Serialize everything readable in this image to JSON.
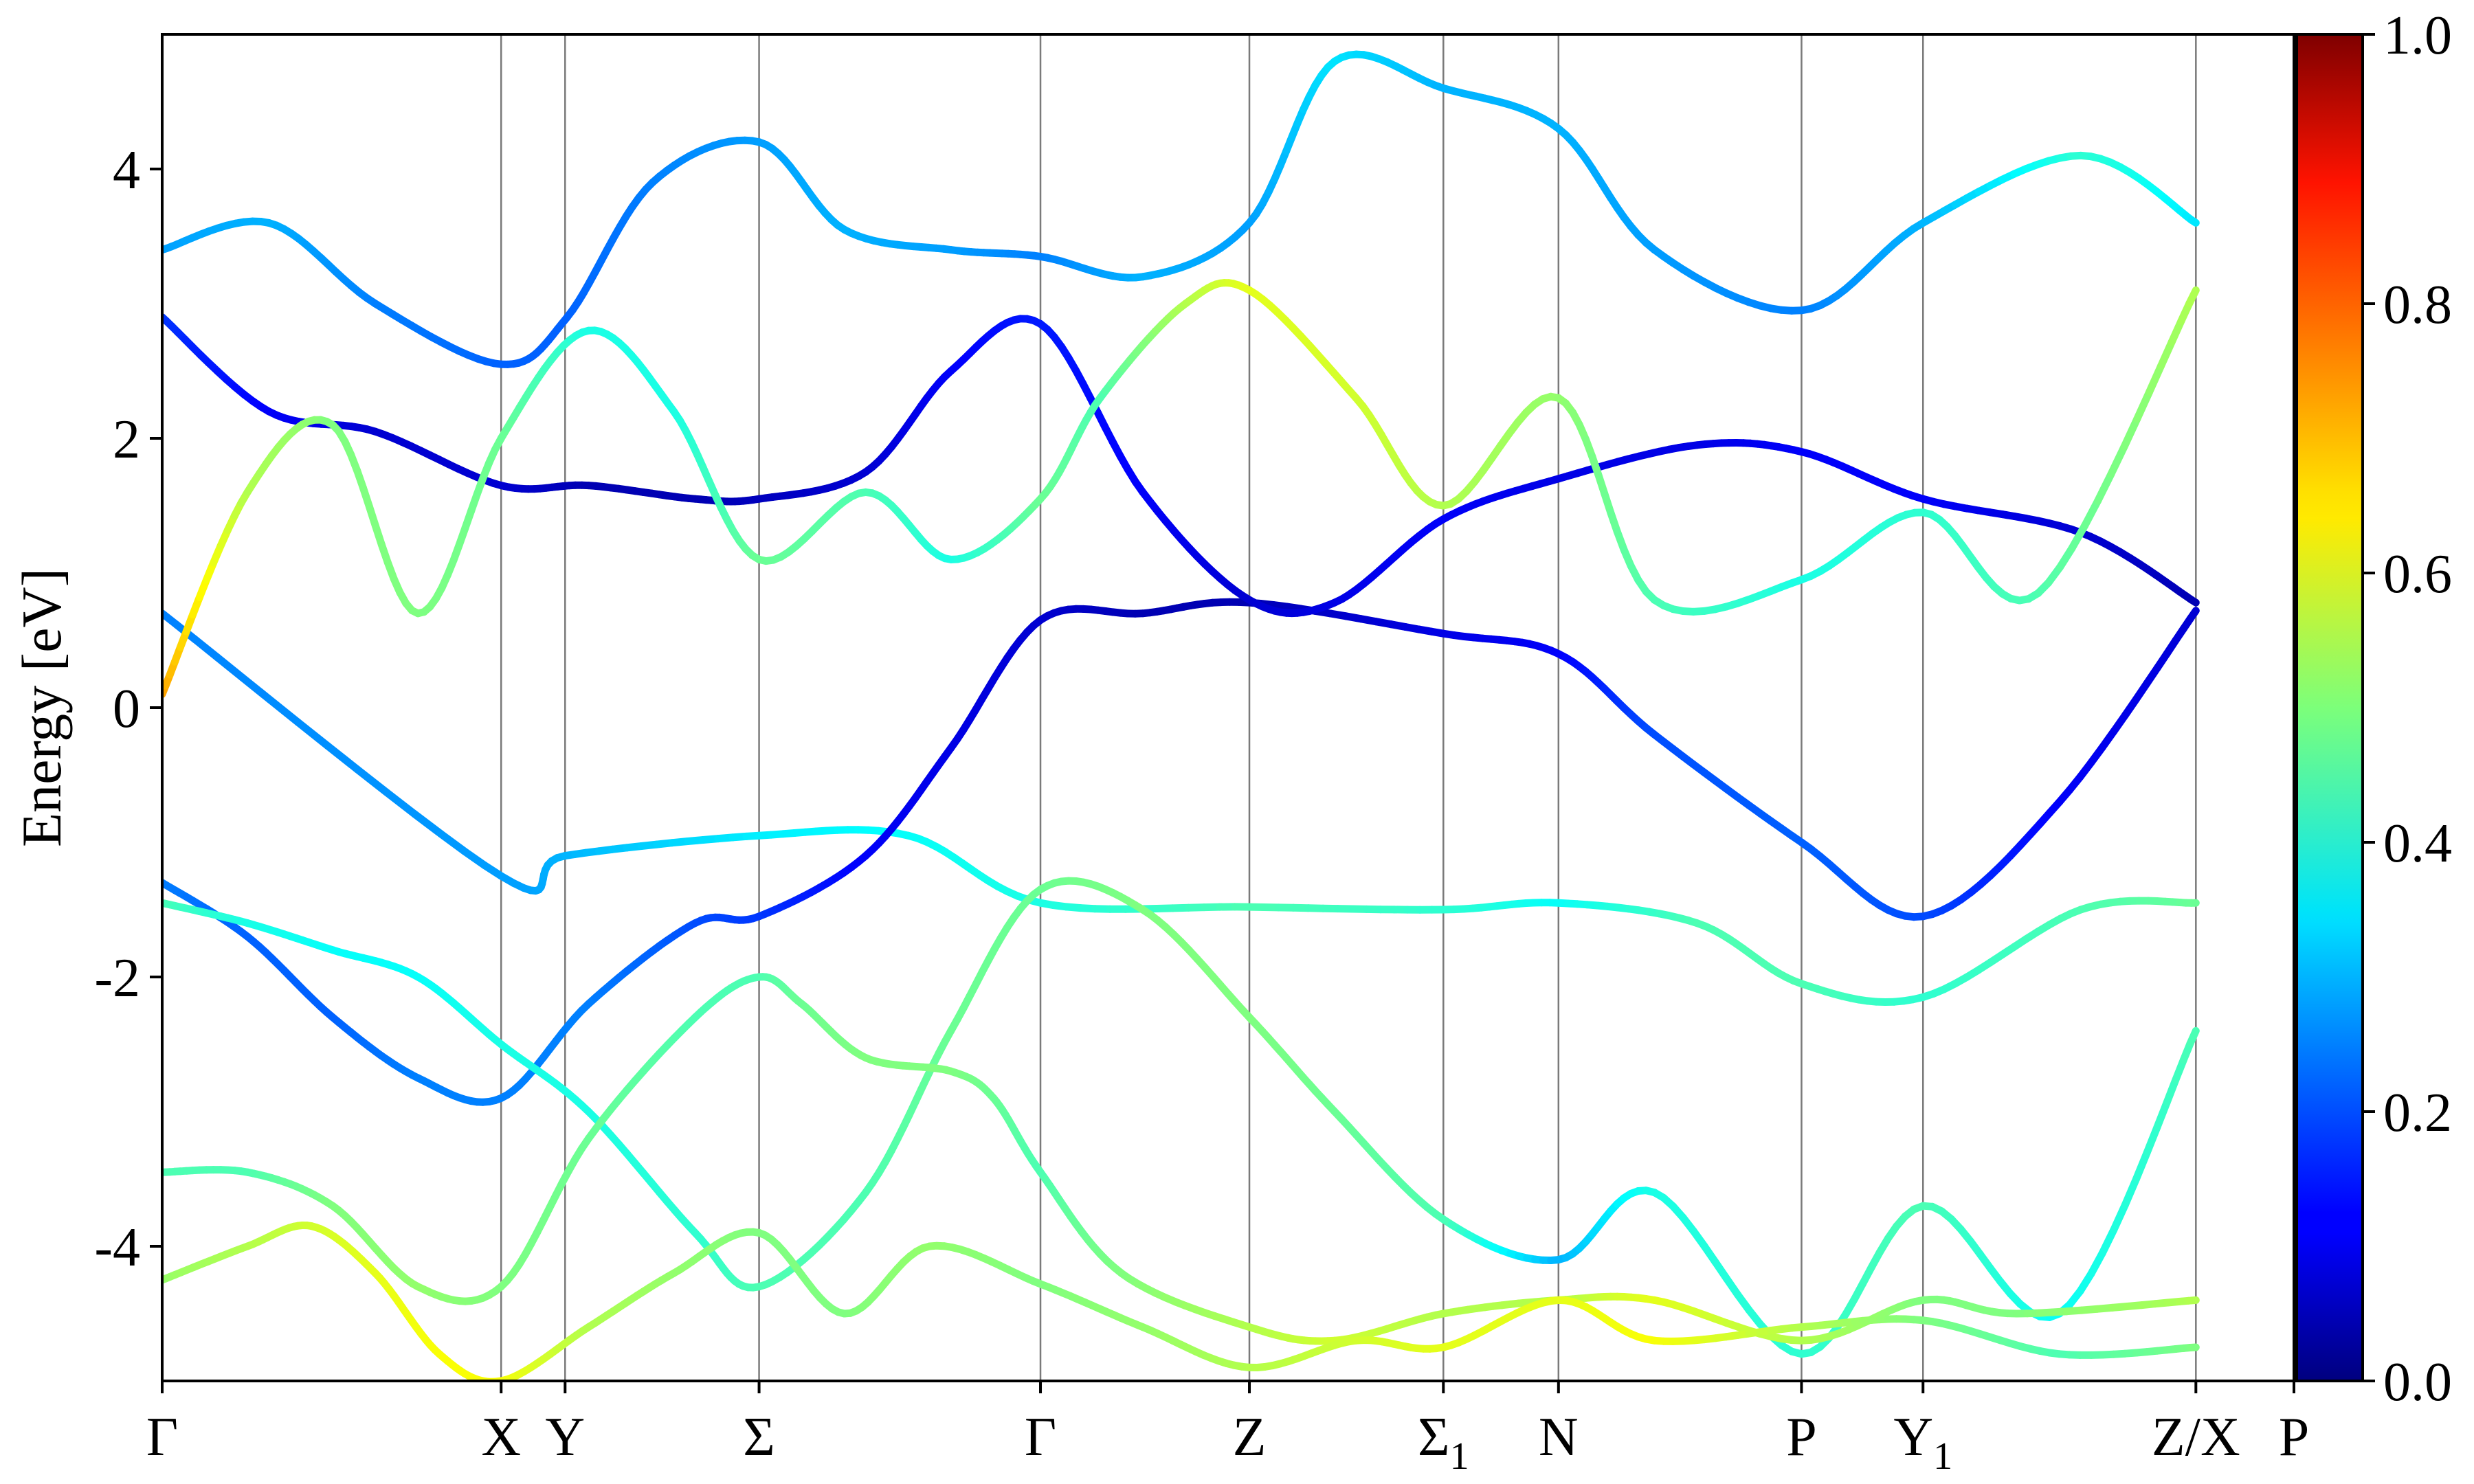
{
  "chart_data": {
    "type": "line",
    "subtype": "electronic band structure with projection weight colormap",
    "ylabel": "Energy [eV]",
    "xlabel": "",
    "title": "",
    "ylim": [
      -5,
      5
    ],
    "yticks": [
      -4,
      -2,
      0,
      2,
      4
    ],
    "ytick_labels": [
      "-4",
      "-2",
      "0",
      "2",
      "4"
    ],
    "grid": "vertical lines at high-symmetry points",
    "kpath": [
      {
        "label": "Γ",
        "sub": "",
        "x": 0.0
      },
      {
        "label": "X",
        "sub": "",
        "x": 0.159
      },
      {
        "label": "Y",
        "sub": "",
        "x": 0.189
      },
      {
        "label": "Σ",
        "sub": "",
        "x": 0.28
      },
      {
        "label": "Γ",
        "sub": "",
        "x": 0.412
      },
      {
        "label": "Z",
        "sub": "",
        "x": 0.51
      },
      {
        "label": "Σ",
        "sub": "1",
        "x": 0.601
      },
      {
        "label": "N",
        "sub": "",
        "x": 0.655
      },
      {
        "label": "P",
        "sub": "",
        "x": 0.769
      },
      {
        "label": "Y",
        "sub": "1",
        "x": 0.826
      },
      {
        "label": "Z/X",
        "sub": "",
        "x": 0.954
      },
      {
        "label": "P",
        "sub": "",
        "x": 1.0
      }
    ],
    "colorbar": {
      "colormap": "jet",
      "range": [
        0.0,
        1.0
      ],
      "ticks": [
        "0.0",
        "0.2",
        "0.4",
        "0.6",
        "0.8",
        "1.0"
      ]
    },
    "series": [
      {
        "x": [
          0.0,
          0.159,
          0.189,
          0.28,
          0.35,
          0.412,
          0.51,
          0.601,
          0.655,
          0.72,
          0.769,
          0.826,
          0.9,
          0.954
        ],
        "y": [
          0.7,
          -1.25,
          -1.1,
          -0.95,
          -0.95,
          -1.45,
          -1.48,
          -1.5,
          -1.45,
          -1.6,
          -2.05,
          -2.15,
          -1.5,
          -1.45
        ],
        "w": [
          0.25,
          0.28,
          0.3,
          0.36,
          0.38,
          0.4,
          0.45,
          0.42,
          0.38,
          0.45,
          0.45,
          0.42,
          0.45,
          0.48
        ]
      },
      {
        "x": [
          0.0,
          0.04,
          0.08,
          0.12,
          0.159,
          0.2,
          0.25,
          0.28,
          0.33,
          0.37,
          0.412,
          0.46,
          0.51,
          0.601,
          0.655,
          0.7,
          0.769,
          0.826,
          0.89,
          0.954
        ],
        "y": [
          -1.3,
          -1.7,
          -2.3,
          -2.75,
          -2.9,
          -2.2,
          -1.6,
          -1.55,
          -1.1,
          -0.3,
          0.65,
          0.7,
          0.78,
          0.55,
          0.4,
          -0.2,
          -1.0,
          -1.55,
          -0.7,
          0.72
        ],
        "w": [
          0.25,
          0.22,
          0.22,
          0.25,
          0.25,
          0.25,
          0.2,
          0.18,
          0.12,
          0.1,
          0.08,
          0.05,
          0.05,
          0.1,
          0.12,
          0.2,
          0.22,
          0.2,
          0.12,
          0.08
        ]
      },
      {
        "x": [
          0.0,
          0.04,
          0.08,
          0.12,
          0.159,
          0.2,
          0.25,
          0.28,
          0.33,
          0.37,
          0.412,
          0.46,
          0.51,
          0.55,
          0.601,
          0.655,
          0.7,
          0.769,
          0.826,
          0.89,
          0.954
        ],
        "y": [
          -1.45,
          -1.6,
          -1.8,
          -2.0,
          -2.5,
          -3.0,
          -3.9,
          -4.3,
          -3.6,
          -2.4,
          -1.35,
          -1.5,
          -2.3,
          -3.0,
          -3.8,
          -4.1,
          -3.6,
          -4.8,
          -3.7,
          -4.5,
          -2.4
        ],
        "w": [
          0.45,
          0.4,
          0.38,
          0.38,
          0.4,
          0.4,
          0.42,
          0.45,
          0.45,
          0.48,
          0.48,
          0.5,
          0.5,
          0.48,
          0.45,
          0.3,
          0.4,
          0.42,
          0.45,
          0.38,
          0.45
        ]
      },
      {
        "x": [
          0.0,
          0.05,
          0.1,
          0.159,
          0.2,
          0.25,
          0.28,
          0.33,
          0.37,
          0.412,
          0.46,
          0.51,
          0.55,
          0.601,
          0.655,
          0.72,
          0.769,
          0.826,
          0.9,
          0.954
        ],
        "y": [
          2.9,
          2.2,
          2.05,
          1.65,
          1.65,
          1.55,
          1.55,
          1.75,
          2.5,
          2.85,
          1.6,
          0.8,
          0.78,
          1.4,
          1.7,
          1.95,
          1.9,
          1.55,
          1.3,
          0.78
        ],
        "w": [
          0.18,
          0.12,
          0.08,
          0.08,
          0.05,
          0.05,
          0.06,
          0.08,
          0.12,
          0.15,
          0.12,
          0.08,
          0.1,
          0.12,
          0.1,
          0.1,
          0.12,
          0.12,
          0.08,
          0.05
        ]
      },
      {
        "x": [
          0.0,
          0.04,
          0.08,
          0.12,
          0.159,
          0.2,
          0.24,
          0.28,
          0.33,
          0.37,
          0.412,
          0.44,
          0.48,
          0.51,
          0.56,
          0.601,
          0.655,
          0.7,
          0.769,
          0.826,
          0.88,
          0.954
        ],
        "y": [
          0.1,
          1.6,
          2.1,
          0.7,
          2.0,
          2.8,
          2.2,
          1.1,
          1.6,
          1.1,
          1.55,
          2.3,
          3.0,
          3.1,
          2.3,
          1.5,
          2.3,
          0.8,
          0.95,
          1.45,
          0.85,
          3.1
        ],
        "w": [
          0.72,
          0.55,
          0.5,
          0.5,
          0.48,
          0.4,
          0.4,
          0.48,
          0.45,
          0.4,
          0.48,
          0.45,
          0.55,
          0.6,
          0.58,
          0.55,
          0.52,
          0.45,
          0.4,
          0.42,
          0.45,
          0.55
        ]
      },
      {
        "x": [
          0.0,
          0.05,
          0.1,
          0.159,
          0.19,
          0.23,
          0.28,
          0.32,
          0.37,
          0.412,
          0.46,
          0.51,
          0.55,
          0.601,
          0.655,
          0.7,
          0.769,
          0.826,
          0.9,
          0.954
        ],
        "y": [
          3.4,
          3.6,
          3.0,
          2.55,
          2.9,
          3.9,
          4.2,
          3.55,
          3.4,
          3.35,
          3.2,
          3.6,
          4.8,
          4.6,
          4.3,
          3.4,
          2.95,
          3.6,
          4.1,
          3.6
        ],
        "w": [
          0.28,
          0.3,
          0.25,
          0.22,
          0.22,
          0.25,
          0.28,
          0.3,
          0.28,
          0.25,
          0.3,
          0.28,
          0.35,
          0.3,
          0.3,
          0.28,
          0.25,
          0.3,
          0.42,
          0.35
        ]
      },
      {
        "x": [
          0.0,
          0.04,
          0.08,
          0.12,
          0.159,
          0.2,
          0.25,
          0.28,
          0.3,
          0.33,
          0.37,
          0.39,
          0.412,
          0.45,
          0.51,
          0.55,
          0.601,
          0.655,
          0.7,
          0.769,
          0.826,
          0.87,
          0.954
        ],
        "y": [
          -3.45,
          -3.45,
          -3.7,
          -4.3,
          -4.3,
          -3.2,
          -2.3,
          -2.0,
          -2.2,
          -2.6,
          -2.7,
          -2.9,
          -3.45,
          -4.2,
          -4.6,
          -4.7,
          -4.5,
          -4.4,
          -4.4,
          -4.7,
          -4.4,
          -4.5,
          -4.4
        ],
        "w": [
          0.45,
          0.45,
          0.5,
          0.52,
          0.5,
          0.48,
          0.45,
          0.45,
          0.48,
          0.5,
          0.5,
          0.48,
          0.45,
          0.5,
          0.55,
          0.58,
          0.55,
          0.55,
          0.6,
          0.55,
          0.5,
          0.5,
          0.55
        ]
      },
      {
        "x": [
          0.0,
          0.04,
          0.07,
          0.1,
          0.13,
          0.159,
          0.2,
          0.24,
          0.28,
          0.32,
          0.36,
          0.412,
          0.46,
          0.51,
          0.56,
          0.601,
          0.655,
          0.7,
          0.769,
          0.826,
          0.89,
          0.954
        ],
        "y": [
          -4.25,
          -4.0,
          -3.85,
          -4.2,
          -4.8,
          -5.0,
          -4.6,
          -4.2,
          -3.9,
          -4.5,
          -4.0,
          -4.28,
          -4.6,
          -4.9,
          -4.7,
          -4.75,
          -4.4,
          -4.7,
          -4.6,
          -4.55,
          -4.8,
          -4.75
        ],
        "w": [
          0.52,
          0.55,
          0.58,
          0.6,
          0.62,
          0.62,
          0.55,
          0.52,
          0.5,
          0.5,
          0.52,
          0.5,
          0.52,
          0.55,
          0.58,
          0.6,
          0.6,
          0.62,
          0.55,
          0.5,
          0.45,
          0.5
        ]
      }
    ]
  }
}
